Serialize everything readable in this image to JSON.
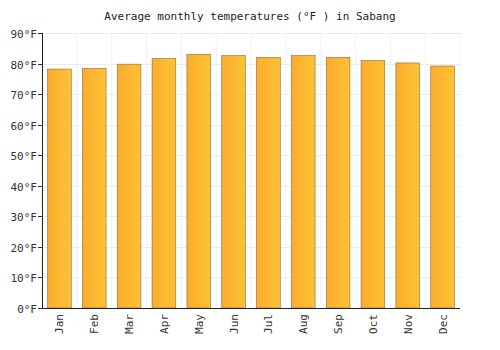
{
  "chart_data": {
    "type": "bar",
    "title": "Average monthly temperatures (°F ) in Sabang",
    "categories": [
      "Jan",
      "Feb",
      "Mar",
      "Apr",
      "May",
      "Jun",
      "Jul",
      "Aug",
      "Sep",
      "Oct",
      "Nov",
      "Dec"
    ],
    "values": [
      78.2,
      78.4,
      79.8,
      81.6,
      83,
      82.6,
      82,
      82.6,
      82,
      81,
      80.2,
      79.2
    ],
    "color": "#fcb030",
    "ylim": [
      0,
      90
    ],
    "yticks": [
      {
        "value": 0,
        "label": "0°F"
      },
      {
        "value": 10,
        "label": "10°F"
      },
      {
        "value": 20,
        "label": "20°F"
      },
      {
        "value": 30,
        "label": "30°F"
      },
      {
        "value": 40,
        "label": "40°F"
      },
      {
        "value": 50,
        "label": "50°F"
      },
      {
        "value": 60,
        "label": "60°F"
      },
      {
        "value": 70,
        "label": "70°F"
      },
      {
        "value": 80,
        "label": "80°F"
      },
      {
        "value": 90,
        "label": "90°F"
      }
    ],
    "grid": true
  }
}
